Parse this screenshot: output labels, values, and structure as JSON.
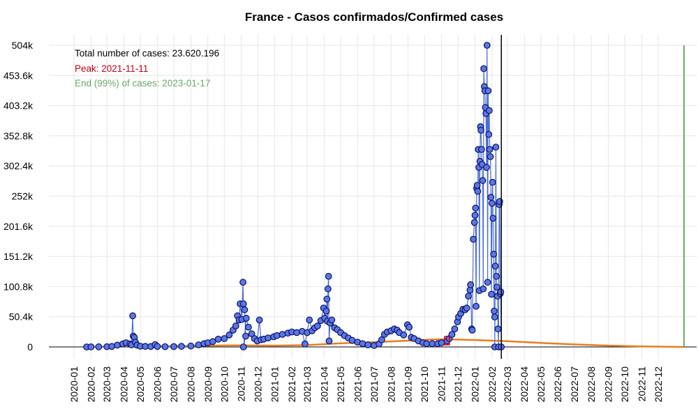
{
  "chart_data": {
    "type": "line",
    "title": "France - Casos confirmados/Confirmed cases",
    "xlabel": "",
    "ylabel": "",
    "y_ticks": [
      0,
      50400,
      100800,
      151200,
      201600,
      252000,
      302400,
      352800,
      403200,
      453600,
      504000
    ],
    "y_tick_labels": [
      "0",
      "50.4k",
      "100.8k",
      "151.2k",
      "201.6k",
      "252k",
      "302.4k",
      "352.8k",
      "403.2k",
      "453.6k",
      "504k"
    ],
    "ylim": [
      -15000,
      520000
    ],
    "xlim": [
      "2019-12-20",
      "2023-01-25"
    ],
    "x_ticks": [
      "2020-01-01",
      "2020-02-01",
      "2020-03-01",
      "2020-04-01",
      "2020-05-01",
      "2020-06-01",
      "2020-07-01",
      "2020-08-01",
      "2020-09-01",
      "2020-10-01",
      "2020-11-01",
      "2020-12-01",
      "2021-01-01",
      "2021-02-01",
      "2021-03-01",
      "2021-04-01",
      "2021-05-01",
      "2021-06-01",
      "2021-07-01",
      "2021-08-01",
      "2021-09-01",
      "2021-10-01",
      "2021-11-01",
      "2021-12-01",
      "2022-01-01",
      "2022-02-01",
      "2022-03-01",
      "2022-04-01",
      "2022-05-01",
      "2022-06-01",
      "2022-07-01",
      "2022-08-01",
      "2022-09-01",
      "2022-10-01",
      "2022-11-01",
      "2022-12-01"
    ],
    "x_tick_labels": [
      "2020-01",
      "2020-02",
      "2020-03",
      "2020-04",
      "2020-05",
      "2020-06",
      "2020-07",
      "2020-08",
      "2020-09",
      "2020-10",
      "2020-11",
      "2020-12",
      "2021-01",
      "2021-02",
      "2021-03",
      "2021-04",
      "2021-05",
      "2021-06",
      "2021-07",
      "2021-08",
      "2021-09",
      "2021-10",
      "2021-11",
      "2021-12",
      "2022-01",
      "2022-02",
      "2022-03",
      "2022-04",
      "2022-05",
      "2022-06",
      "2022-07",
      "2022-08",
      "2022-09",
      "2022-10",
      "2022-11",
      "2022-12"
    ],
    "grid": true,
    "current_date_line": "2022-02-18",
    "end_line": "2023-01-17",
    "annotations": {
      "total": "Total number of cases: 23.620.196",
      "peak": "Peak: 2021-11-11",
      "end": "End (99%) of cases: 2023-01-17"
    },
    "colors": {
      "points_fill": "#5b78e0",
      "points_stroke": "#0b0f6b",
      "daily_line": "#4a6ed8",
      "fit_line": "#e67e22",
      "peak": "#c0001a",
      "end": "#6aa86a",
      "current_line": "#000000"
    },
    "series": [
      {
        "values": [
          [
            "2020-01-24",
            0
          ],
          [
            "2020-02-01",
            100
          ],
          [
            "2020-02-15",
            200
          ],
          [
            "2020-03-01",
            300
          ],
          [
            "2020-03-10",
            800
          ],
          [
            "2020-03-20",
            3000
          ],
          [
            "2020-03-30",
            5000
          ],
          [
            "2020-04-05",
            7000
          ],
          [
            "2020-04-12",
            5000
          ],
          [
            "2020-04-15",
            3500
          ],
          [
            "2020-04-17",
            52000
          ],
          [
            "2020-04-18",
            18000
          ],
          [
            "2020-04-20",
            16000
          ],
          [
            "2020-04-22",
            8000
          ],
          [
            "2020-04-25",
            3000
          ],
          [
            "2020-05-01",
            1200
          ],
          [
            "2020-05-10",
            900
          ],
          [
            "2020-05-20",
            700
          ],
          [
            "2020-05-28",
            4000
          ],
          [
            "2020-06-01",
            800
          ],
          [
            "2020-06-15",
            500
          ],
          [
            "2020-07-01",
            600
          ],
          [
            "2020-07-15",
            900
          ],
          [
            "2020-08-01",
            1500
          ],
          [
            "2020-08-15",
            3500
          ],
          [
            "2020-08-25",
            5500
          ],
          [
            "2020-09-01",
            7000
          ],
          [
            "2020-09-10",
            9000
          ],
          [
            "2020-09-20",
            13000
          ],
          [
            "2020-10-01",
            14000
          ],
          [
            "2020-10-10",
            20000
          ],
          [
            "2020-10-17",
            28000
          ],
          [
            "2020-10-22",
            35000
          ],
          [
            "2020-10-25",
            52000
          ],
          [
            "2020-10-28",
            45000
          ],
          [
            "2020-10-30",
            72000
          ],
          [
            "2020-11-02",
            46000
          ],
          [
            "2020-11-04",
            108000
          ],
          [
            "2020-11-05",
            72000
          ],
          [
            "2020-11-07",
            62000
          ],
          [
            "2020-11-09",
            18000
          ],
          [
            "2020-11-05",
            0
          ],
          [
            "2020-11-10",
            48000
          ],
          [
            "2020-11-14",
            33000
          ],
          [
            "2020-11-20",
            22000
          ],
          [
            "2020-11-25",
            14000
          ],
          [
            "2020-11-30",
            10000
          ],
          [
            "2020-12-04",
            45000
          ],
          [
            "2020-12-07",
            12000
          ],
          [
            "2020-12-12",
            13000
          ],
          [
            "2020-12-20",
            15000
          ],
          [
            "2020-12-30",
            17000
          ],
          [
            "2021-01-05",
            19000
          ],
          [
            "2021-01-15",
            21000
          ],
          [
            "2021-01-25",
            23000
          ],
          [
            "2021-02-01",
            25000
          ],
          [
            "2021-02-10",
            24000
          ],
          [
            "2021-02-20",
            26000
          ],
          [
            "2021-02-25",
            5000
          ],
          [
            "2021-03-01",
            24000
          ],
          [
            "2021-03-05",
            45000
          ],
          [
            "2021-03-10",
            27000
          ],
          [
            "2021-03-15",
            32000
          ],
          [
            "2021-03-20",
            35000
          ],
          [
            "2021-03-26",
            44000
          ],
          [
            "2021-03-31",
            65000
          ],
          [
            "2021-04-02",
            48000
          ],
          [
            "2021-04-05",
            60000
          ],
          [
            "2021-04-06",
            80000
          ],
          [
            "2021-04-07",
            43000
          ],
          [
            "2021-04-08",
            97000
          ],
          [
            "2021-04-09",
            118000
          ],
          [
            "2021-04-10",
            10000
          ],
          [
            "2021-04-12",
            40000
          ],
          [
            "2021-04-15",
            45000
          ],
          [
            "2021-04-20",
            32000
          ],
          [
            "2021-04-25",
            29000
          ],
          [
            "2021-05-01",
            24000
          ],
          [
            "2021-05-08",
            19000
          ],
          [
            "2021-05-15",
            15000
          ],
          [
            "2021-05-22",
            11000
          ],
          [
            "2021-06-01",
            8000
          ],
          [
            "2021-06-10",
            5500
          ],
          [
            "2021-06-20",
            3500
          ],
          [
            "2021-07-01",
            2500
          ],
          [
            "2021-07-10",
            5000
          ],
          [
            "2021-07-15",
            12000
          ],
          [
            "2021-07-20",
            21000
          ],
          [
            "2021-07-25",
            25000
          ],
          [
            "2021-08-01",
            27000
          ],
          [
            "2021-08-07",
            30000
          ],
          [
            "2021-08-12",
            28000
          ],
          [
            "2021-08-16",
            24000
          ],
          [
            "2021-08-24",
            20000
          ],
          [
            "2021-08-31",
            37000
          ],
          [
            "2021-09-03",
            33000
          ],
          [
            "2021-09-07",
            16000
          ],
          [
            "2021-09-12",
            14000
          ],
          [
            "2021-09-20",
            10000
          ],
          [
            "2021-09-28",
            7000
          ],
          [
            "2021-10-05",
            5500
          ],
          [
            "2021-10-15",
            5500
          ],
          [
            "2021-10-25",
            5500
          ],
          [
            "2021-11-01",
            7000
          ],
          [
            "2021-11-11",
            10000
          ],
          [
            "2021-11-15",
            14000
          ],
          [
            "2021-11-20",
            21000
          ],
          [
            "2021-11-25",
            30000
          ],
          [
            "2021-11-30",
            42000
          ],
          [
            "2021-12-02",
            50000
          ],
          [
            "2021-12-06",
            56000
          ],
          [
            "2021-12-10",
            63000
          ],
          [
            "2021-12-14",
            62000
          ],
          [
            "2021-12-17",
            65000
          ],
          [
            "2021-12-20",
            85000
          ],
          [
            "2021-12-23",
            95000
          ],
          [
            "2021-12-24",
            104000
          ],
          [
            "2021-12-26",
            30000
          ],
          [
            "2021-12-27",
            28000
          ],
          [
            "2021-12-29",
            180000
          ],
          [
            "2021-12-31",
            208000
          ],
          [
            "2022-01-01",
            220000
          ],
          [
            "2022-01-02",
            232000
          ],
          [
            "2022-01-03",
            68000
          ],
          [
            "2022-01-04",
            265000
          ],
          [
            "2022-01-05",
            270000
          ],
          [
            "2022-01-06",
            260000
          ],
          [
            "2022-01-07",
            330000
          ],
          [
            "2022-01-08",
            300000
          ],
          [
            "2022-01-09",
            94000
          ],
          [
            "2022-01-10",
            310000
          ],
          [
            "2022-01-11",
            368000
          ],
          [
            "2022-01-12",
            362000
          ],
          [
            "2022-01-13",
            330000
          ],
          [
            "2022-01-14",
            305000
          ],
          [
            "2022-01-15",
            278000
          ],
          [
            "2022-01-16",
            97000
          ],
          [
            "2022-01-17",
            465000
          ],
          [
            "2022-01-18",
            435000
          ],
          [
            "2022-01-19",
            428000
          ],
          [
            "2022-01-20",
            400000
          ],
          [
            "2022-01-21",
            390000
          ],
          [
            "2022-01-22",
            300000
          ],
          [
            "2022-01-23",
            504000
          ],
          [
            "2022-01-24",
            108000
          ],
          [
            "2022-01-25",
            428000
          ],
          [
            "2022-01-26",
            355000
          ],
          [
            "2022-01-27",
            395000
          ],
          [
            "2022-01-28",
            330000
          ],
          [
            "2022-01-29",
            318000
          ],
          [
            "2022-01-30",
            250000
          ],
          [
            "2022-01-31",
            88000
          ],
          [
            "2022-02-01",
            240000
          ],
          [
            "2022-02-02",
            275000
          ],
          [
            "2022-02-03",
            215000
          ],
          [
            "2022-02-04",
            155000
          ],
          [
            "2022-02-05",
            60000
          ],
          [
            "2022-02-06",
            50000
          ],
          [
            "2022-02-06",
            0
          ],
          [
            "2022-02-07",
            135000
          ],
          [
            "2022-02-08",
            334000
          ],
          [
            "2022-02-09",
            118000
          ],
          [
            "2022-02-10",
            100000
          ],
          [
            "2022-02-11",
            85000
          ],
          [
            "2022-02-12",
            30000
          ],
          [
            "2022-02-13",
            0
          ],
          [
            "2022-02-14",
            238000
          ],
          [
            "2022-02-15",
            243000
          ],
          [
            "2022-02-16",
            89000
          ],
          [
            "2022-02-17",
            92000
          ],
          [
            "2022-02-18",
            0
          ]
        ]
      },
      {
        "values": [
          [
            "2020-01-24",
            0
          ],
          [
            "2020-03-10",
            600
          ],
          [
            "2020-04-01",
            4000
          ],
          [
            "2020-04-15",
            5000
          ],
          [
            "2020-05-10",
            2500
          ],
          [
            "2020-06-15",
            1200
          ],
          [
            "2020-08-01",
            1500
          ],
          [
            "2020-10-01",
            2500
          ],
          [
            "2020-11-01",
            2700
          ],
          [
            "2020-12-01",
            2300
          ],
          [
            "2021-01-01",
            2200
          ],
          [
            "2021-03-01",
            3000
          ],
          [
            "2021-05-01",
            6000
          ],
          [
            "2021-07-01",
            8000
          ],
          [
            "2021-09-01",
            10500
          ],
          [
            "2021-10-15",
            12500
          ],
          [
            "2021-11-11",
            12800
          ],
          [
            "2022-01-01",
            11500
          ],
          [
            "2022-03-01",
            9500
          ],
          [
            "2022-05-01",
            6800
          ],
          [
            "2022-07-01",
            4200
          ],
          [
            "2022-09-01",
            2200
          ],
          [
            "2022-11-01",
            900
          ],
          [
            "2023-01-17",
            50
          ]
        ]
      }
    ]
  }
}
